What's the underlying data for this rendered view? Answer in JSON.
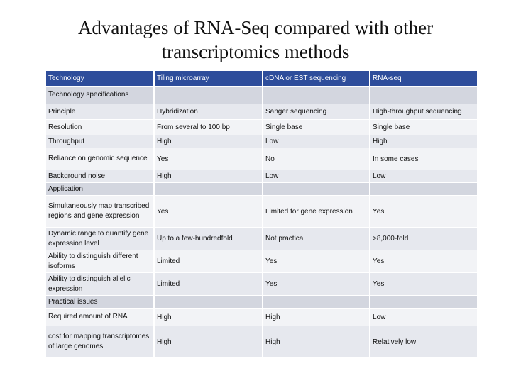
{
  "title": "Advantages of RNA-Seq compared with other transcriptomics methods",
  "table": {
    "header": [
      "Technology",
      "Tiling microarray",
      "cDNA or EST sequencing",
      "RNA-seq"
    ],
    "rows": [
      {
        "type": "section",
        "cells": [
          "Technology specifications",
          "",
          "",
          ""
        ]
      },
      {
        "type": "data",
        "cells": [
          "Principle",
          "Hybridization",
          "Sanger sequencing",
          "High-throughput sequencing"
        ]
      },
      {
        "type": "data",
        "cells": [
          "Resolution",
          "From several to 100 bp",
          "Single base",
          "Single base"
        ]
      },
      {
        "type": "data",
        "cells": [
          "Throughput",
          "High",
          "Low",
          "High"
        ]
      },
      {
        "type": "data",
        "cells": [
          "Reliance on genomic sequence",
          "Yes",
          "No",
          "In some cases"
        ]
      },
      {
        "type": "data",
        "cells": [
          "Background noise",
          "High",
          "Low",
          "Low"
        ]
      },
      {
        "type": "section",
        "cells": [
          "Application",
          "",
          "",
          ""
        ]
      },
      {
        "type": "data",
        "cells": [
          "Simultaneously map transcribed regions and gene expression",
          "Yes",
          "Limited for gene expression",
          "Yes"
        ]
      },
      {
        "type": "data",
        "cells": [
          "Dynamic range to quantify gene expression level",
          "Up to a few-hundredfold",
          "Not practical",
          ">8,000-fold"
        ]
      },
      {
        "type": "data",
        "cells": [
          "Ability to distinguish different isoforms",
          "Limited",
          "Yes",
          "Yes"
        ]
      },
      {
        "type": "data",
        "cells": [
          "Ability to distinguish allelic expression",
          "Limited",
          "Yes",
          "Yes"
        ]
      },
      {
        "type": "section",
        "cells": [
          "Practical issues",
          "",
          "",
          ""
        ]
      },
      {
        "type": "data",
        "cells": [
          "Required amount of RNA",
          "High",
          "High",
          "Low"
        ]
      },
      {
        "type": "data",
        "cells": [
          "cost for mapping transcriptomes of large genomes",
          "High",
          "High",
          "Relatively low"
        ]
      }
    ]
  }
}
